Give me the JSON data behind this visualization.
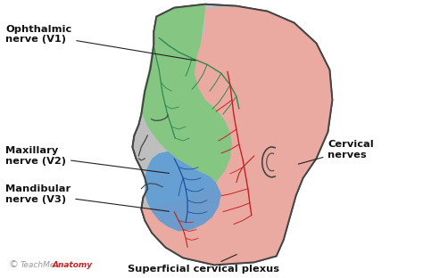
{
  "bg_color": "#ffffff",
  "labels": {
    "ophthalmic": "Ophthalmic\nnerve (V1)",
    "maxillary": "Maxillary\nnerve (V2)",
    "mandibular": "Mandibular\nnerve (V3)",
    "cervical": "Cervical\nnerves",
    "superficial": "Superficial cervical plexus",
    "copyright": "©",
    "teachme": "TeachMe",
    "anatomy": "Anatomy"
  },
  "colors": {
    "green_region": "#7EC87B",
    "blue_region": "#5A9BD4",
    "pink_region": "#F2A89E",
    "head_gray": "#BEBEBE",
    "head_outline": "#444444",
    "nerve_green": "#2D8A50",
    "nerve_red": "#C42020",
    "nerve_blue": "#1E4FA0",
    "ann_line": "#111111",
    "watermark_gray": "#999999",
    "watermark_red": "#CC2222"
  },
  "figsize": [
    4.74,
    3.12
  ],
  "dpi": 100
}
